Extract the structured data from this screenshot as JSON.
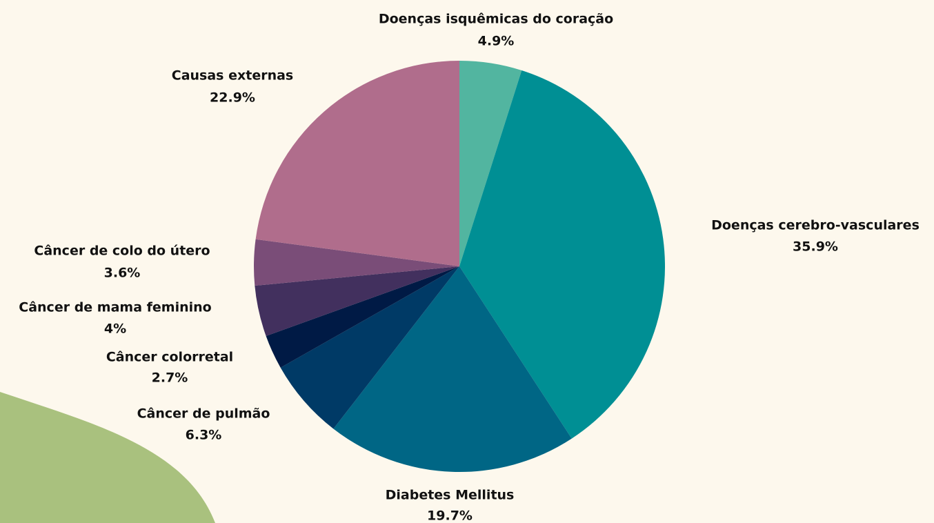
{
  "chart_data": {
    "type": "pie",
    "categories": [
      "Doenças isquêmicas do coração",
      "Doenças cerebro-vasculares",
      "Diabetes Mellitus",
      "Câncer de pulmão",
      "Câncer colorretal",
      "Câncer de mama feminino",
      "Câncer de colo do útero",
      "Causas externas"
    ],
    "values": [
      4.9,
      35.9,
      19.7,
      6.3,
      2.7,
      4,
      3.6,
      22.9
    ],
    "value_labels": [
      "4.9%",
      "35.9%",
      "19.7%",
      "6.3%",
      "2.7%",
      "4%",
      "3.6%",
      "22.9%"
    ],
    "colors": [
      "#52b5a0",
      "#008f94",
      "#006685",
      "#003a66",
      "#001a45",
      "#42305e",
      "#7a4d78",
      "#b06d8c"
    ]
  }
}
